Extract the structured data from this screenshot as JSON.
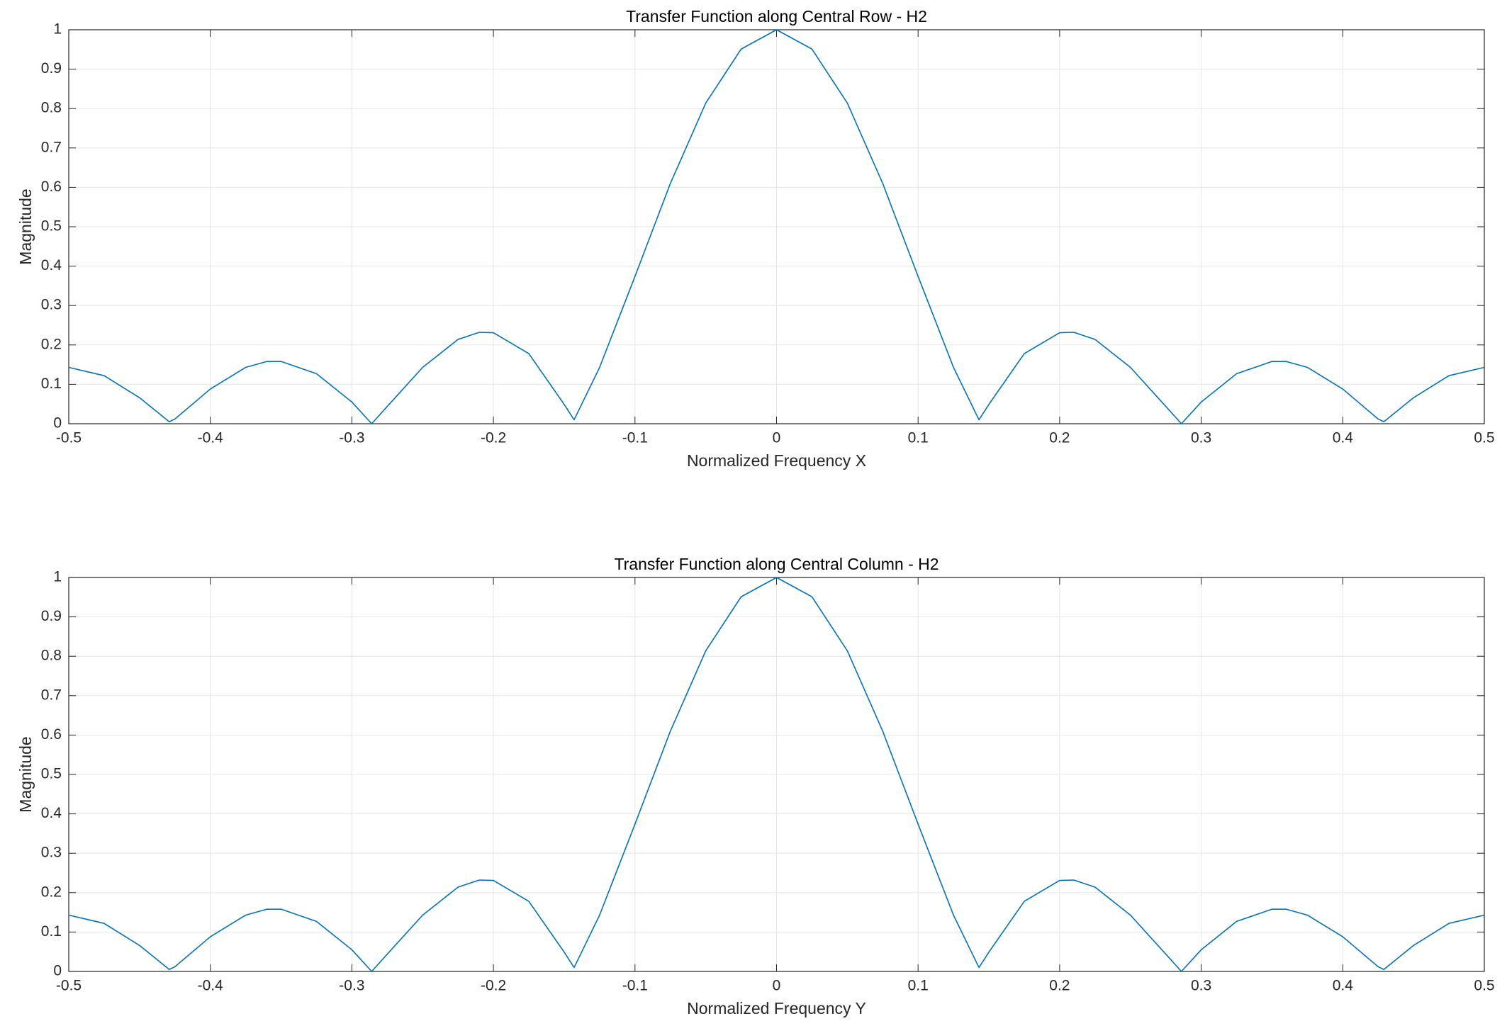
{
  "chart_data": [
    {
      "type": "line",
      "title": "Transfer Function along Central Row - H2",
      "xlabel": "Normalized Frequency X",
      "ylabel": "Magnitude",
      "x": [
        -0.5,
        -0.475,
        -0.45,
        -0.429,
        -0.425,
        -0.4,
        -0.375,
        -0.36,
        -0.35,
        -0.325,
        -0.3,
        -0.286,
        -0.275,
        -0.25,
        -0.225,
        -0.21,
        -0.2,
        -0.175,
        -0.15,
        -0.143,
        -0.125,
        -0.1,
        -0.075,
        -0.05,
        -0.025,
        0,
        0.025,
        0.05,
        0.075,
        0.1,
        0.125,
        0.143,
        0.15,
        0.175,
        0.2,
        0.21,
        0.225,
        0.25,
        0.275,
        0.286,
        0.3,
        0.325,
        0.35,
        0.36,
        0.375,
        0.4,
        0.425,
        0.429,
        0.45,
        0.475,
        0.5
      ],
      "values": [
        0.143,
        0.122,
        0.066,
        0.005,
        0.012,
        0.088,
        0.143,
        0.158,
        0.158,
        0.127,
        0.055,
        0,
        0.044,
        0.143,
        0.214,
        0.232,
        0.231,
        0.178,
        0.049,
        0.01,
        0.143,
        0.374,
        0.61,
        0.814,
        0.951,
        1,
        0.951,
        0.814,
        0.61,
        0.374,
        0.143,
        0.01,
        0.049,
        0.178,
        0.231,
        0.232,
        0.214,
        0.143,
        0.044,
        0,
        0.055,
        0.127,
        0.158,
        0.158,
        0.143,
        0.088,
        0.012,
        0.005,
        0.066,
        0.122,
        0.143
      ],
      "color": "#0072bd",
      "xlim": [
        -0.5,
        0.5
      ],
      "xticks": [
        -0.5,
        -0.4,
        -0.3,
        -0.2,
        -0.1,
        0,
        0.1,
        0.2,
        0.3,
        0.4,
        0.5
      ],
      "ylim": [
        0,
        1
      ],
      "yticks": [
        0,
        0.1,
        0.2,
        0.3,
        0.4,
        0.5,
        0.6,
        0.7,
        0.8,
        0.9,
        1
      ],
      "grid": true
    },
    {
      "type": "line",
      "title": "Transfer Function along Central Column - H2",
      "xlabel": "Normalized Frequency Y",
      "ylabel": "Magnitude",
      "x": [
        -0.5,
        -0.475,
        -0.45,
        -0.429,
        -0.425,
        -0.4,
        -0.375,
        -0.36,
        -0.35,
        -0.325,
        -0.3,
        -0.286,
        -0.275,
        -0.25,
        -0.225,
        -0.21,
        -0.2,
        -0.175,
        -0.15,
        -0.143,
        -0.125,
        -0.1,
        -0.075,
        -0.05,
        -0.025,
        0,
        0.025,
        0.05,
        0.075,
        0.1,
        0.125,
        0.143,
        0.15,
        0.175,
        0.2,
        0.21,
        0.225,
        0.25,
        0.275,
        0.286,
        0.3,
        0.325,
        0.35,
        0.36,
        0.375,
        0.4,
        0.425,
        0.429,
        0.45,
        0.475,
        0.5
      ],
      "values": [
        0.143,
        0.122,
        0.066,
        0.005,
        0.012,
        0.088,
        0.143,
        0.158,
        0.158,
        0.127,
        0.055,
        0,
        0.044,
        0.143,
        0.214,
        0.232,
        0.231,
        0.178,
        0.049,
        0.01,
        0.143,
        0.374,
        0.61,
        0.814,
        0.951,
        1,
        0.951,
        0.814,
        0.61,
        0.374,
        0.143,
        0.01,
        0.049,
        0.178,
        0.231,
        0.232,
        0.214,
        0.143,
        0.044,
        0,
        0.055,
        0.127,
        0.158,
        0.158,
        0.143,
        0.088,
        0.012,
        0.005,
        0.066,
        0.122,
        0.143
      ],
      "color": "#0072bd",
      "xlim": [
        -0.5,
        0.5
      ],
      "xticks": [
        -0.5,
        -0.4,
        -0.3,
        -0.2,
        -0.1,
        0,
        0.1,
        0.2,
        0.3,
        0.4,
        0.5
      ],
      "ylim": [
        0,
        1
      ],
      "yticks": [
        0,
        0.1,
        0.2,
        0.3,
        0.4,
        0.5,
        0.6,
        0.7,
        0.8,
        0.9,
        1
      ],
      "grid": true
    }
  ]
}
